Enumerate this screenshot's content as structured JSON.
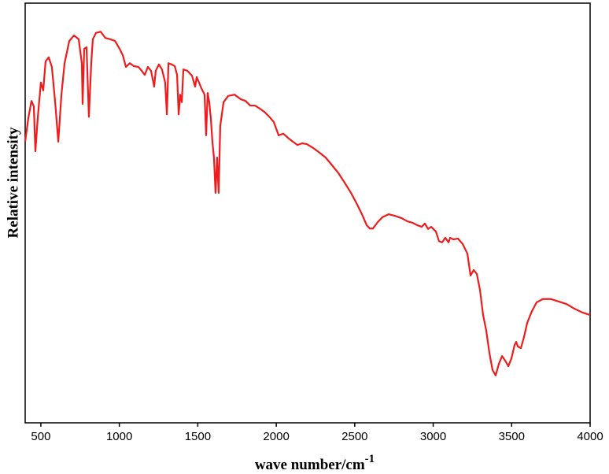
{
  "chart_data": {
    "type": "line",
    "ylabel": "Relative intensity",
    "xlabel": {
      "text": "wave number/cm",
      "superscript": "-1"
    },
    "xlim": [
      400,
      4000
    ],
    "xticks": [
      500,
      1000,
      1500,
      2000,
      2500,
      3000,
      3500,
      4000
    ],
    "ylim": [
      0,
      100
    ],
    "x": [
      400,
      420,
      440,
      455,
      465,
      480,
      500,
      515,
      530,
      550,
      570,
      591,
      611,
      631,
      651,
      681,
      711,
      741,
      761,
      766,
      776,
      791,
      806,
      821,
      831,
      851,
      881,
      911,
      942,
      972,
      1002,
      1022,
      1042,
      1067,
      1092,
      1122,
      1142,
      1162,
      1182,
      1202,
      1222,
      1232,
      1252,
      1272,
      1292,
      1303,
      1313,
      1333,
      1353,
      1368,
      1378,
      1388,
      1398,
      1408,
      1433,
      1463,
      1483,
      1493,
      1523,
      1543,
      1553,
      1563,
      1573,
      1583,
      1593,
      1603,
      1613,
      1623,
      1633,
      1643,
      1664,
      1694,
      1734,
      1774,
      1804,
      1834,
      1864,
      1894,
      1924,
      1954,
      1984,
      2015,
      2045,
      2075,
      2105,
      2135,
      2165,
      2195,
      2235,
      2275,
      2315,
      2355,
      2396,
      2436,
      2476,
      2516,
      2546,
      2576,
      2596,
      2616,
      2646,
      2676,
      2716,
      2757,
      2797,
      2837,
      2867,
      2897,
      2927,
      2947,
      2967,
      2987,
      3017,
      3037,
      3057,
      3077,
      3098,
      3108,
      3128,
      3158,
      3188,
      3218,
      3238,
      3258,
      3278,
      3298,
      3318,
      3338,
      3358,
      3378,
      3398,
      3419,
      3439,
      3459,
      3479,
      3499,
      3519,
      3529,
      3539,
      3559,
      3579,
      3599,
      3629,
      3659,
      3699,
      3749,
      3800,
      3850,
      3900,
      3950,
      4000
    ],
    "series": [
      {
        "color": "#ee1c1c",
        "values": [
          67.0,
          72.6,
          76.7,
          75.4,
          64.7,
          72.6,
          81.1,
          79.2,
          86.1,
          87.1,
          84.8,
          76.4,
          67.0,
          78.2,
          85.7,
          91.0,
          92.3,
          91.4,
          85.7,
          76.0,
          89.1,
          89.5,
          72.9,
          85.7,
          91.4,
          92.9,
          93.2,
          91.7,
          91.4,
          91.0,
          89.1,
          87.6,
          84.8,
          85.7,
          85.0,
          84.8,
          83.9,
          82.9,
          84.8,
          83.9,
          80.1,
          83.9,
          85.4,
          84.2,
          81.1,
          73.5,
          85.7,
          85.4,
          85.0,
          82.9,
          73.5,
          78.2,
          76.4,
          84.2,
          83.9,
          82.7,
          80.1,
          82.4,
          79.7,
          78.2,
          68.5,
          78.6,
          76.4,
          72.6,
          67.0,
          63.2,
          54.8,
          63.2,
          54.8,
          70.7,
          76.4,
          77.9,
          78.2,
          77.1,
          76.7,
          75.6,
          75.6,
          74.9,
          74.1,
          73.0,
          71.7,
          68.5,
          68.9,
          67.9,
          67.0,
          66.2,
          66.6,
          66.4,
          65.5,
          64.4,
          63.2,
          61.4,
          59.5,
          57.2,
          54.8,
          52.0,
          49.7,
          47.1,
          46.3,
          46.3,
          47.8,
          49.0,
          49.7,
          49.3,
          48.8,
          48.0,
          47.7,
          47.1,
          46.7,
          47.5,
          46.2,
          46.7,
          45.6,
          43.3,
          43.0,
          44.1,
          43.0,
          44.1,
          43.7,
          43.9,
          42.6,
          40.3,
          35.1,
          36.4,
          35.5,
          31.7,
          25.7,
          22.0,
          16.7,
          12.6,
          11.3,
          14.1,
          15.9,
          14.8,
          13.5,
          15.4,
          18.6,
          19.3,
          18.2,
          17.8,
          20.5,
          23.8,
          26.6,
          28.7,
          29.5,
          29.5,
          28.9,
          28.3,
          27.2,
          26.3,
          25.7
        ]
      }
    ]
  }
}
